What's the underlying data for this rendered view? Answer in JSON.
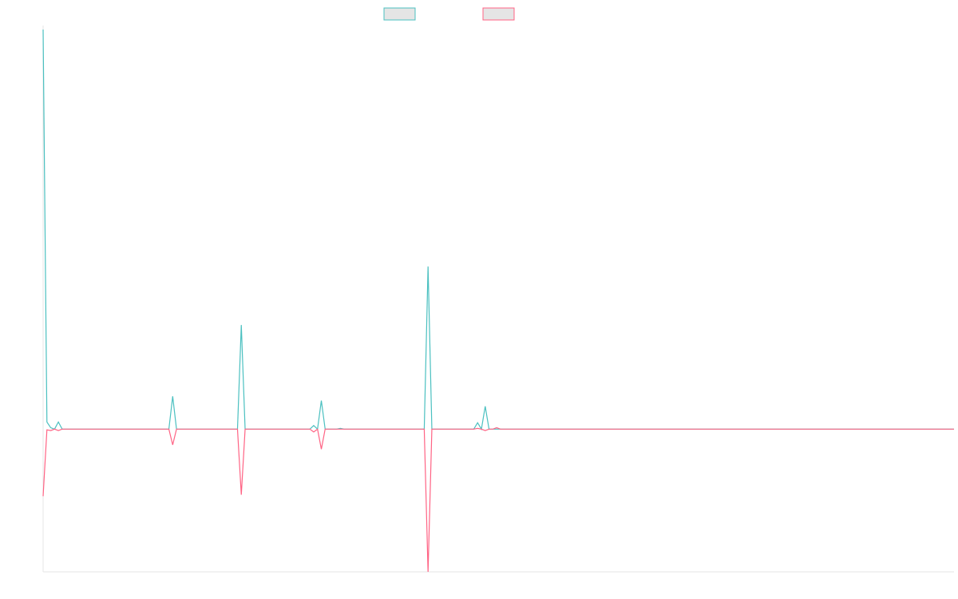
{
  "chart_data": {
    "type": "line",
    "x_count": 240,
    "ylim": [
      -1.0,
      2.8
    ],
    "grid": false,
    "legend": "top",
    "series": [
      {
        "name": "",
        "color": "#4BC0C0",
        "legend_fill": "#E5E5E5",
        "points": [
          [
            0,
            2.8
          ],
          [
            1,
            0.05
          ],
          [
            2,
            0.01
          ],
          [
            3,
            0.0
          ],
          [
            4,
            0.05
          ],
          [
            5,
            0.0
          ],
          [
            33,
            0.0
          ],
          [
            34,
            0.23
          ],
          [
            35,
            0.0
          ],
          [
            51,
            0.0
          ],
          [
            52,
            0.73
          ],
          [
            53,
            0.0
          ],
          [
            70,
            0.0
          ],
          [
            71,
            0.025
          ],
          [
            72,
            0.0
          ],
          [
            73,
            0.2
          ],
          [
            74,
            0.0
          ],
          [
            77,
            0.0
          ],
          [
            78,
            0.005
          ],
          [
            79,
            0.0
          ],
          [
            100,
            0.0
          ],
          [
            101,
            1.14
          ],
          [
            102,
            0.0
          ],
          [
            113,
            0.0
          ],
          [
            114,
            0.045
          ],
          [
            115,
            0.0
          ],
          [
            116,
            0.16
          ],
          [
            117,
            0.0
          ],
          [
            239,
            0.0
          ]
        ]
      },
      {
        "name": "",
        "color": "#FF6384",
        "legend_fill": "#E5E5E5",
        "points": [
          [
            0,
            -0.47
          ],
          [
            1,
            -0.005
          ],
          [
            2,
            -0.01
          ],
          [
            3,
            0.0
          ],
          [
            4,
            -0.01
          ],
          [
            5,
            0.0
          ],
          [
            33,
            0.0
          ],
          [
            34,
            -0.11
          ],
          [
            35,
            0.0
          ],
          [
            51,
            0.0
          ],
          [
            52,
            -0.46
          ],
          [
            53,
            0.0
          ],
          [
            70,
            0.0
          ],
          [
            71,
            -0.02
          ],
          [
            72,
            0.0
          ],
          [
            73,
            -0.14
          ],
          [
            74,
            0.0
          ],
          [
            100,
            0.0
          ],
          [
            101,
            -1.0
          ],
          [
            102,
            0.0
          ],
          [
            113,
            0.0
          ],
          [
            114,
            0.005
          ],
          [
            115,
            0.0
          ],
          [
            116,
            -0.01
          ],
          [
            117,
            0.0
          ],
          [
            118,
            0.0
          ],
          [
            119,
            0.01
          ],
          [
            120,
            0.0
          ],
          [
            239,
            0.0
          ]
        ]
      }
    ]
  }
}
